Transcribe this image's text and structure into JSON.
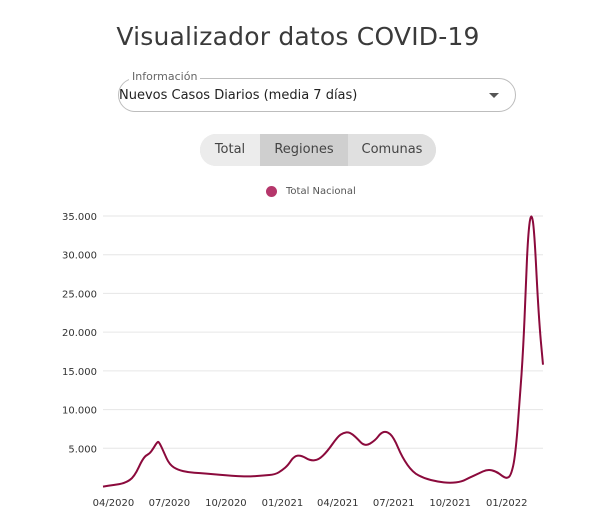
{
  "title": "Visualizador datos COVID-19",
  "info_select": {
    "legend": "Información",
    "value": "Nuevos Casos Diarios (media 7 días)"
  },
  "tabs": [
    {
      "label": "Total"
    },
    {
      "label": "Regiones"
    },
    {
      "label": "Comunas"
    }
  ],
  "colors": {
    "series": "#8b0a3c",
    "legend_dot": "#b5366b",
    "grid": "#e6e6e6"
  },
  "chart_data": {
    "type": "line",
    "legend": [
      "Total Nacional"
    ],
    "y_ticks": [
      5000,
      10000,
      15000,
      20000,
      25000,
      30000,
      35000
    ],
    "y_tick_labels": [
      "5.000",
      "10.000",
      "15.000",
      "20.000",
      "25.000",
      "30.000",
      "35.000"
    ],
    "x_tick_labels": [
      "04/2020",
      "07/2020",
      "10/2020",
      "01/2021",
      "04/2021",
      "07/2021",
      "10/2021",
      "01/2022"
    ],
    "ylim": [
      0,
      36000
    ],
    "grid": true,
    "legend_position": "top-center",
    "series": [
      {
        "name": "Total Nacional",
        "x": [
          "2020-03-15",
          "2020-04-01",
          "2020-04-20",
          "2020-05-05",
          "2020-05-20",
          "2020-05-30",
          "2020-06-05",
          "2020-06-12",
          "2020-06-15",
          "2020-06-22",
          "2020-07-01",
          "2020-07-15",
          "2020-08-01",
          "2020-08-20",
          "2020-09-10",
          "2020-10-01",
          "2020-10-20",
          "2020-11-10",
          "2020-12-01",
          "2020-12-20",
          "2021-01-01",
          "2021-01-10",
          "2021-01-20",
          "2021-02-01",
          "2021-02-15",
          "2021-03-01",
          "2021-03-15",
          "2021-04-01",
          "2021-04-10",
          "2021-04-20",
          "2021-05-01",
          "2021-05-15",
          "2021-06-01",
          "2021-06-10",
          "2021-06-20",
          "2021-07-01",
          "2021-07-15",
          "2021-08-01",
          "2021-08-20",
          "2021-09-10",
          "2021-10-01",
          "2021-10-20",
          "2021-11-01",
          "2021-11-15",
          "2021-12-01",
          "2021-12-15",
          "2021-12-25",
          "2022-01-01",
          "2022-01-08",
          "2022-01-15",
          "2022-01-22",
          "2022-01-28",
          "2022-02-01",
          "2022-02-05",
          "2022-02-10",
          "2022-02-15",
          "2022-02-22",
          "2022-03-01"
        ],
        "values": [
          50,
          250,
          500,
          1300,
          3900,
          4300,
          5000,
          5900,
          5700,
          4500,
          2900,
          2200,
          1900,
          1800,
          1650,
          1500,
          1400,
          1350,
          1500,
          1600,
          2200,
          2800,
          4000,
          4100,
          3400,
          3500,
          4600,
          6500,
          7000,
          7100,
          6400,
          5200,
          6000,
          7000,
          7200,
          6400,
          3800,
          1900,
          1100,
          700,
          500,
          700,
          1200,
          1700,
          2300,
          2000,
          1400,
          1100,
          1500,
          4000,
          11000,
          18000,
          26000,
          33000,
          35600,
          33000,
          22000,
          15800
        ]
      }
    ]
  }
}
